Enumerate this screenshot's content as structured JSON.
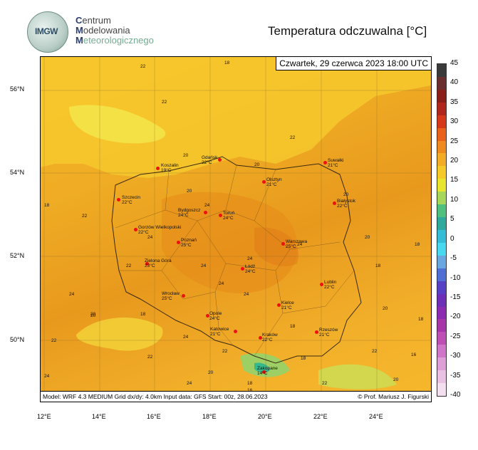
{
  "header": {
    "logo_text": "IMGW",
    "org_lines": [
      {
        "cap": "C",
        "rest": "entrum"
      },
      {
        "cap": "M",
        "rest": "odelowania"
      },
      {
        "cap": "M",
        "rest": "eteorologicznego"
      }
    ],
    "title": "Temperatura odczuwalna [°C]"
  },
  "map": {
    "date": "Czwartek, 29 czerwca 2023 18:00 UTC",
    "footer_left": "Model: WRF 4.3 MEDIUM   Grid dx/dy: 4.0km   Input data: GFS   Start: 00z, 28.06.2023",
    "footer_right": "© Prof. Mariusz J. Figurski",
    "lat_labels": [
      "56°N",
      "54°N",
      "52°N",
      "50°N"
    ],
    "lon_labels": [
      "12°E",
      "14°E",
      "16°E",
      "18°E",
      "20°E",
      "22°E",
      "24°E"
    ],
    "cities": [
      {
        "name": "Koszalin",
        "temp": "19°C"
      },
      {
        "name": "Gdańsk",
        "temp": "22°C"
      },
      {
        "name": "Suwałki",
        "temp": "21°C"
      },
      {
        "name": "Olsztyn",
        "temp": "21°C"
      },
      {
        "name": "Szczecin",
        "temp": "22°C"
      },
      {
        "name": "Białystok",
        "temp": "22°C"
      },
      {
        "name": "Bydgoszcz",
        "temp": "24°C"
      },
      {
        "name": "Toruń",
        "temp": "24°C"
      },
      {
        "name": "Gorzów Wielkopolski",
        "temp": "22°C"
      },
      {
        "name": "Poznań",
        "temp": "25°C"
      },
      {
        "name": "Warszawa",
        "temp": "25°C"
      },
      {
        "name": "Zielona Góra",
        "temp": "23°C"
      },
      {
        "name": "Łódź",
        "temp": "24°C"
      },
      {
        "name": "Lublin",
        "temp": "22°C"
      },
      {
        "name": "Wrocław",
        "temp": "25°C"
      },
      {
        "name": "Kielce",
        "temp": "21°C"
      },
      {
        "name": "Opole",
        "temp": "24°C"
      },
      {
        "name": "Katowice",
        "temp": "21°C"
      },
      {
        "name": "Kraków",
        "temp": "22°C"
      },
      {
        "name": "Rzeszów",
        "temp": "21°C"
      },
      {
        "name": "Zakopane",
        "temp": "14°C"
      }
    ],
    "contour_labels": [
      "22",
      "18",
      "22",
      "22",
      "20",
      "20",
      "18",
      "22",
      "20",
      "24",
      "24",
      "24",
      "22",
      "20",
      "20",
      "18",
      "18",
      "18",
      "24",
      "22",
      "24",
      "20",
      "22",
      "20",
      "22",
      "18",
      "22",
      "24",
      "24",
      "24",
      "22",
      "20",
      "18",
      "20",
      "18",
      "16",
      "18",
      "16",
      "20",
      "24",
      "24",
      "24"
    ]
  },
  "colorbar": {
    "labels": [
      "45",
      "40",
      "35",
      "30",
      "25",
      "20",
      "15",
      "10",
      "5",
      "0",
      "-5",
      "-10",
      "-15",
      "-20",
      "-25",
      "-30",
      "-35",
      "-40"
    ],
    "colors": [
      "#3a3a3a",
      "#6b2e2e",
      "#8a1f1a",
      "#b0261c",
      "#d6381a",
      "#e8621c",
      "#ef8a20",
      "#f3ac27",
      "#f5c928",
      "#e8e52f",
      "#a6d65a",
      "#4fc07d",
      "#2fa99d",
      "#37bcd8",
      "#48d8ef",
      "#6aa7e0",
      "#4f6fd5",
      "#5641c6",
      "#6d2fb8",
      "#8c2bb1",
      "#a737a8",
      "#bd4fb5",
      "#cf76c8",
      "#dd9fd6",
      "#e9c1e2",
      "#f3dff0"
    ]
  }
}
